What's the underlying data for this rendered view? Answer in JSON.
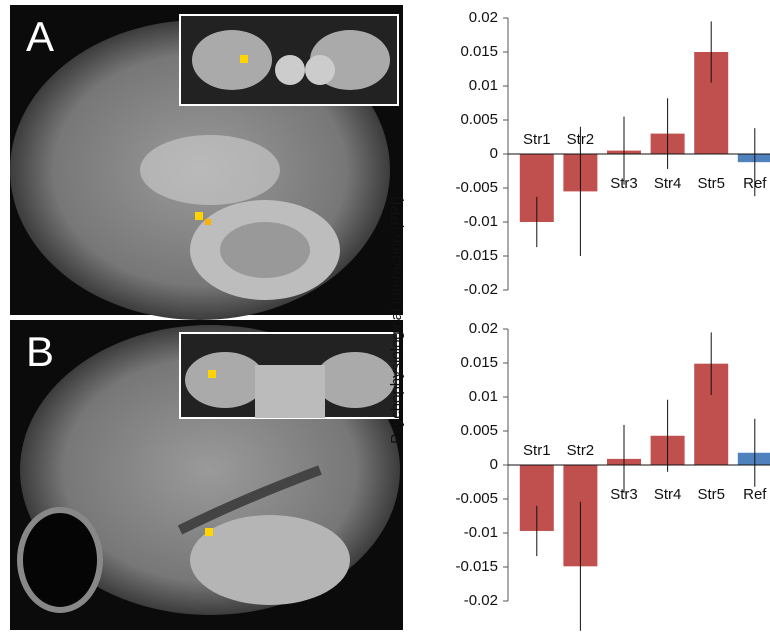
{
  "chart_data": [
    {
      "type": "bar",
      "panel_label": "A",
      "y_label": "Psychophysiological Interaction (PPI)",
      "categories": [
        "Str1",
        "Str2",
        "Str3",
        "Str4",
        "Str5",
        "Ref"
      ],
      "values": [
        -0.01,
        -0.0055,
        0.0005,
        0.003,
        0.015,
        -0.0012
      ],
      "errors": [
        0.0037,
        0.0095,
        0.005,
        0.0052,
        0.0045,
        0.005
      ],
      "colors": [
        "#c0504d",
        "#c0504d",
        "#c0504d",
        "#c0504d",
        "#c0504d",
        "#4f81bd"
      ],
      "ylim": [
        -0.02,
        0.02
      ],
      "yticks": [
        0.02,
        0.015,
        0.01,
        0.005,
        0,
        -0.005,
        -0.01,
        -0.015,
        -0.02
      ]
    },
    {
      "type": "bar",
      "panel_label": "B",
      "categories": [
        "Str1",
        "Str2",
        "Str3",
        "Str4",
        "Str5",
        "Ref"
      ],
      "values": [
        -0.0097,
        -0.0149,
        0.0009,
        0.0043,
        0.0149,
        0.0018
      ],
      "errors": [
        0.0037,
        0.0095,
        0.005,
        0.0053,
        0.0046,
        0.005
      ],
      "colors": [
        "#c0504d",
        "#c0504d",
        "#c0504d",
        "#c0504d",
        "#c0504d",
        "#4f81bd"
      ],
      "ylim": [
        -0.02,
        0.02
      ],
      "yticks": [
        0.02,
        0.015,
        0.01,
        0.005,
        0,
        -0.005,
        -0.01,
        -0.015,
        -0.02
      ]
    }
  ]
}
